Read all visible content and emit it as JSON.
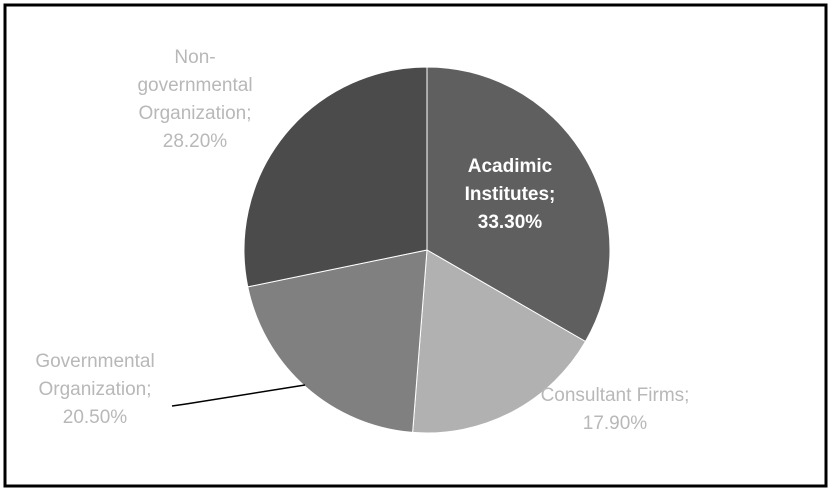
{
  "chart_data": {
    "type": "pie",
    "values": [
      33.3,
      17.9,
      20.5,
      28.2
    ],
    "value_labels": [
      "Acadimic Institutes; 33.30%",
      "Consultant Firms; 17.90%",
      "Governmental Organization; 20.50%",
      "Non-governmental Organization; 28.20%"
    ],
    "colors": [
      "#5f5f5f",
      "#b1b1b1",
      "#808080",
      "#4b4b4b"
    ]
  }
}
